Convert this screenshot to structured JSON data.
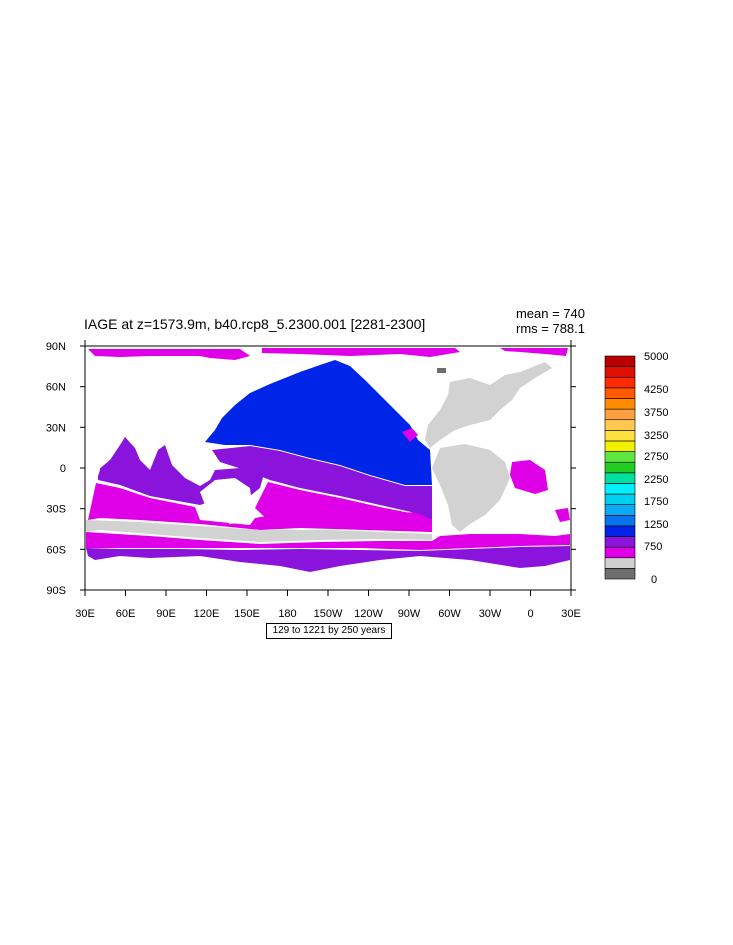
{
  "title": "IAGE at z=1573.9m, b40.rcp8_5.2300.001 [2281-2300]",
  "stats": {
    "mean": "mean = 740",
    "rms": "rms = 788.1"
  },
  "caption": "129 to 1221 by 250 years",
  "axes": {
    "lat_labels": [
      "90N",
      "60N",
      "30N",
      "0",
      "30S",
      "60S",
      "90S"
    ],
    "lon_labels": [
      "30E",
      "60E",
      "90E",
      "120E",
      "150E",
      "180",
      "150W",
      "120W",
      "90W",
      "60W",
      "30W",
      "0",
      "30E"
    ]
  },
  "colorbar": {
    "labels": [
      "5000",
      "4250",
      "3750",
      "3250",
      "2750",
      "2250",
      "1750",
      "1250",
      "750",
      "0"
    ],
    "colors": [
      "#6e6e6e",
      "#d0d0d0",
      "#e000e8",
      "#8a14dc",
      "#0024e8",
      "#0a74f0",
      "#0aaaf4",
      "#00d0f0",
      "#00f0ff",
      "#00e0a0",
      "#22cc22",
      "#60e640",
      "#f0f000",
      "#ffe040",
      "#ffc850",
      "#ffa040",
      "#ff8c00",
      "#ff5a00",
      "#ff2a00",
      "#e01000",
      "#b80000"
    ]
  },
  "field_colors": {
    "land": "#ffffff",
    "missing": "#d2d2d2",
    "age_500": "#e000e8",
    "age_750": "#8a14dc",
    "age_1000": "#0024e8",
    "dark_gray": "#6e6e6e"
  }
}
